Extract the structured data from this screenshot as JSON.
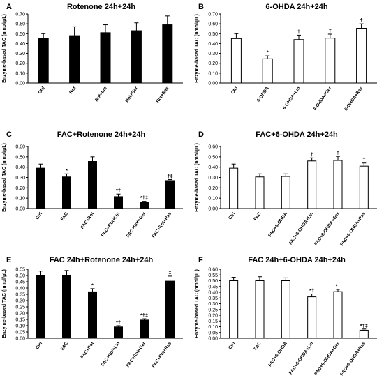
{
  "figure": {
    "panels": [
      {
        "letter": "A",
        "title": "Rotenone 24h+24h"
      },
      {
        "letter": "B",
        "title": "6-OHDA 24h+24h"
      },
      {
        "letter": "C",
        "title": "FAC+Rotenone 24h+24h"
      },
      {
        "letter": "D",
        "title": "FAC+6-OHDA 24h+24h"
      },
      {
        "letter": "E",
        "title": "FAC 24h+Rotenone 24h+24h"
      },
      {
        "letter": "F",
        "title": "FAC 24h+6-OHDA 24h+24h"
      }
    ]
  },
  "chart_data": [
    {
      "type": "bar",
      "letter": "A",
      "title": "Rotenone 24h+24h",
      "ylabel": "Enzyme-based TAC (nmol/μL)",
      "ylim": [
        0,
        0.7
      ],
      "yticks": [
        "0.00",
        "0.10",
        "0.20",
        "0.30",
        "0.40",
        "0.50",
        "0.60",
        "0.70"
      ],
      "grid": false,
      "bar_color": "#000000",
      "categories": [
        "Ctrl",
        "Rot",
        "Rot+Lin",
        "Rot+Ger",
        "Rot+Ras"
      ],
      "values": [
        0.45,
        0.48,
        0.51,
        0.53,
        0.59
      ],
      "errors": [
        0.05,
        0.09,
        0.08,
        0.08,
        0.09
      ],
      "annotations": [
        "",
        "",
        "",
        "",
        ""
      ]
    },
    {
      "type": "bar",
      "letter": "B",
      "title": "6-OHDA 24h+24h",
      "ylabel": "Enzyme-based TAC (nmol/μL)",
      "ylim": [
        0,
        0.7
      ],
      "yticks": [
        "0.00",
        "0.10",
        "0.20",
        "0.30",
        "0.40",
        "0.50",
        "0.60",
        "0.70"
      ],
      "grid": false,
      "bar_color": "#ffffff",
      "categories": [
        "Ctrl",
        "6-OHDA",
        "6-OHDA+Lin",
        "6-OHDA+Ger",
        "6-OHDA+Ras"
      ],
      "values": [
        0.45,
        0.245,
        0.44,
        0.455,
        0.555
      ],
      "errors": [
        0.05,
        0.03,
        0.045,
        0.04,
        0.045
      ],
      "annotations": [
        "",
        "*",
        "†",
        "†",
        "†"
      ]
    },
    {
      "type": "bar",
      "letter": "C",
      "title": "FAC+Rotenone 24h+24h",
      "ylabel": "Enzyme-based TAC (nmol/μL)",
      "ylim": [
        0,
        0.6
      ],
      "yticks": [
        "0.00",
        "0.10",
        "0.20",
        "0.30",
        "0.40",
        "0.50",
        "0.60"
      ],
      "grid": false,
      "bar_color": "#000000",
      "categories": [
        "Ctrl",
        "FAC",
        "FAC+Rot",
        "FAC+Rot+Lin",
        "FAC+Rot+Ger",
        "FAC+Rot+Ras"
      ],
      "values": [
        0.39,
        0.305,
        0.455,
        0.115,
        0.06,
        0.27
      ],
      "errors": [
        0.04,
        0.03,
        0.045,
        0.025,
        0.01,
        0.01
      ],
      "annotations": [
        "",
        "*",
        "",
        "*†",
        "*†‡",
        "†‡"
      ]
    },
    {
      "type": "bar",
      "letter": "D",
      "title": "FAC+6-OHDA 24h+24h",
      "ylabel": "Enzyme-based TAC (nmol/μL)",
      "ylim": [
        0,
        0.6
      ],
      "yticks": [
        "0.00",
        "0.10",
        "0.20",
        "0.30",
        "0.40",
        "0.50",
        "0.60"
      ],
      "grid": false,
      "bar_color": "#ffffff",
      "categories": [
        "Ctrl",
        "FAC",
        "FAC+6-OHDA",
        "FAC+6-OHDA+Lin",
        "FAC+6-OHDA+Ger",
        "FAC+6-OHDA+Ras"
      ],
      "values": [
        0.39,
        0.305,
        0.31,
        0.46,
        0.465,
        0.41
      ],
      "errors": [
        0.04,
        0.03,
        0.025,
        0.03,
        0.04,
        0.03
      ],
      "annotations": [
        "",
        "",
        "",
        "†",
        "†",
        "†"
      ]
    },
    {
      "type": "bar",
      "letter": "E",
      "title": "FAC 24h+Rotenone 24h+24h",
      "ylabel": "Enzyme-based TAC (nmol/μL)",
      "ylim": [
        0,
        0.55
      ],
      "yticks": [
        "0.00",
        "0.05",
        "0.10",
        "0.15",
        "0.20",
        "0.25",
        "0.30",
        "0.35",
        "0.40",
        "0.45",
        "0.50",
        "0.55"
      ],
      "grid": false,
      "bar_color": "#000000",
      "categories": [
        "Ctrl",
        "FAC",
        "FAC+Rot",
        "FAC+Rot+Lin",
        "FAC+Rot+Ger",
        "FAC+Rot+Ras"
      ],
      "values": [
        0.5,
        0.5,
        0.37,
        0.09,
        0.145,
        0.455
      ],
      "errors": [
        0.035,
        0.04,
        0.025,
        0.01,
        0.01,
        0.04
      ],
      "annotations": [
        "",
        "",
        "*",
        "*†",
        "*†‡",
        "‡"
      ]
    },
    {
      "type": "bar",
      "letter": "F",
      "title": "FAC 24h+6-OHDA 24h+24h",
      "ylabel": "Enzyme-based TAC (nmol/μL)",
      "ylim": [
        0,
        0.6
      ],
      "yticks": [
        "0.00",
        "0.05",
        "0.10",
        "0.15",
        "0.20",
        "0.25",
        "0.30",
        "0.35",
        "0.40",
        "0.45",
        "0.50",
        "0.55",
        "0.60"
      ],
      "grid": false,
      "bar_color": "#ffffff",
      "categories": [
        "Ctrl",
        "FAC",
        "FAC+6-OHDA",
        "FAC+6-OHDA+Lin",
        "FAC+6-OHDA+Ger",
        "FAC+6-OHDA+Ras"
      ],
      "values": [
        0.5,
        0.5,
        0.5,
        0.36,
        0.405,
        0.07
      ],
      "errors": [
        0.03,
        0.035,
        0.025,
        0.025,
        0.02,
        0.01
      ],
      "annotations": [
        "",
        "",
        "",
        "*†",
        "*†",
        "*†‡"
      ]
    }
  ]
}
